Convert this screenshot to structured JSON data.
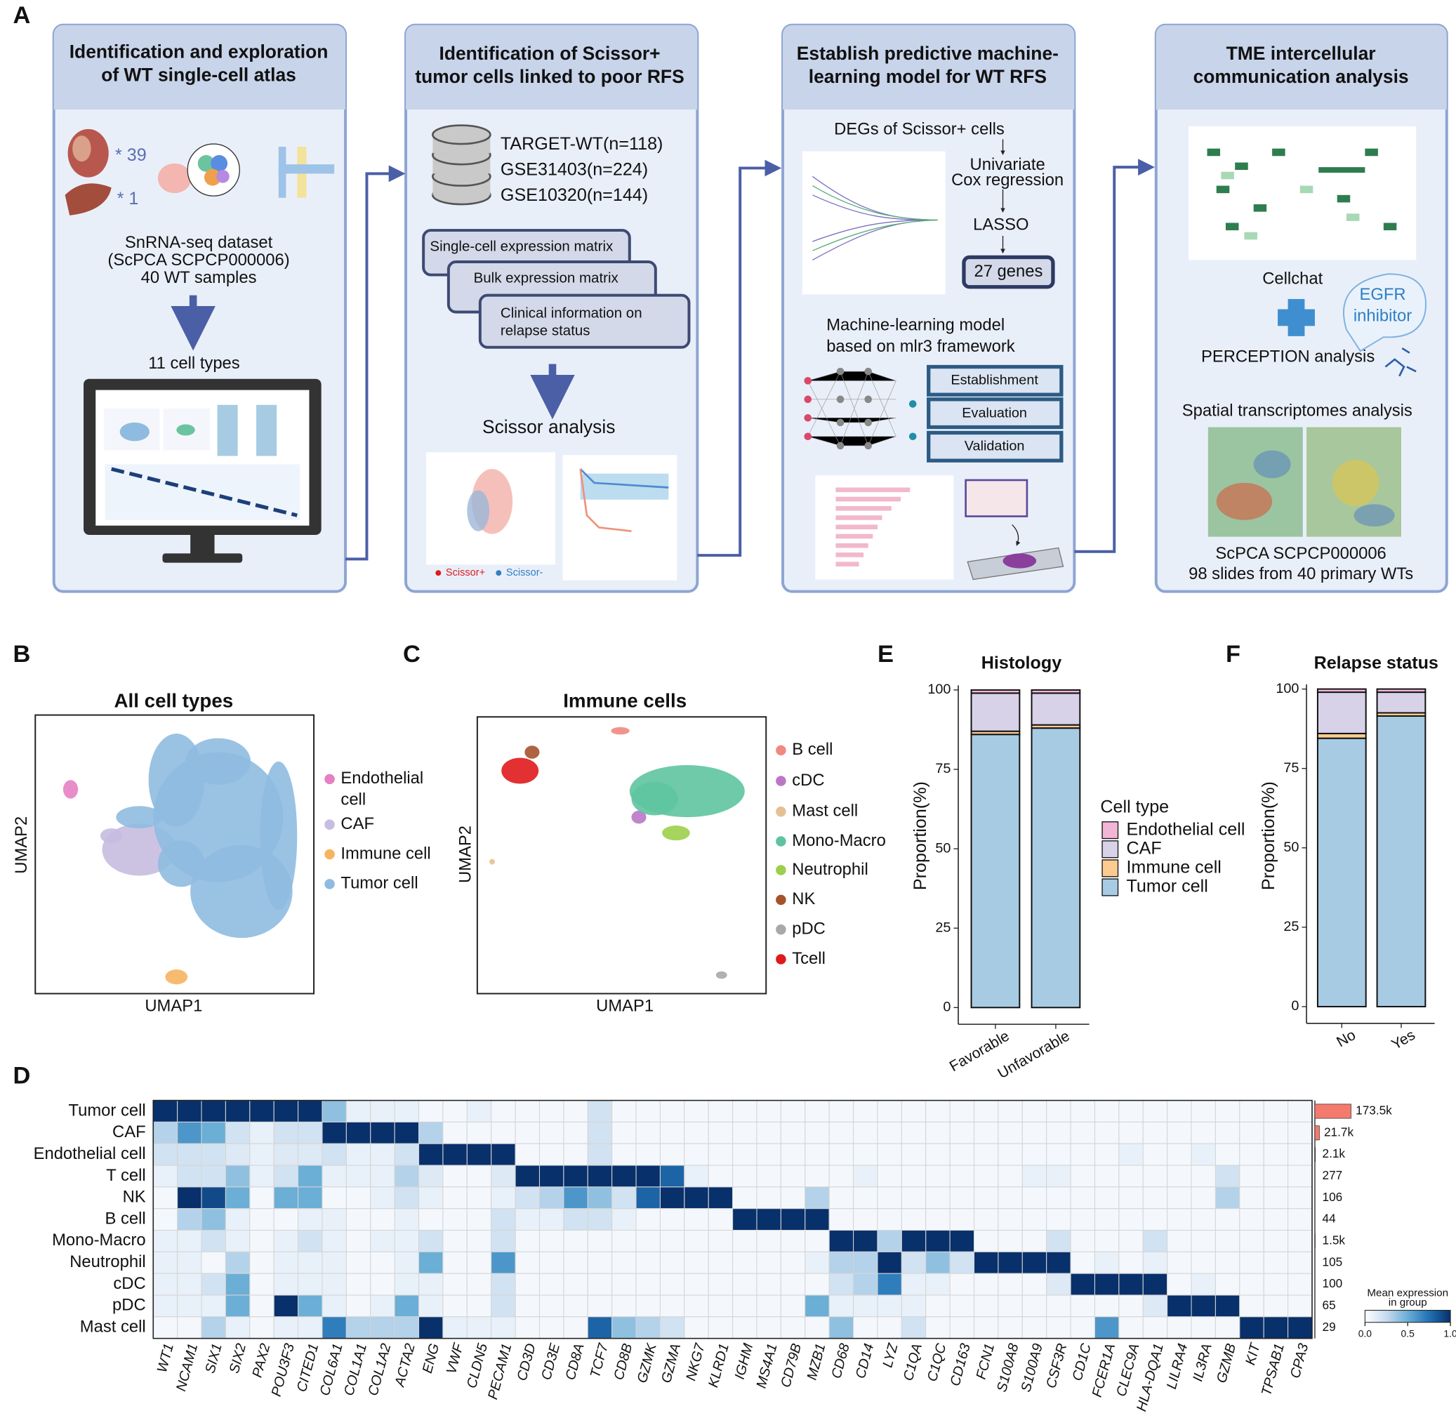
{
  "panel_labels": [
    "A",
    "B",
    "C",
    "D",
    "E",
    "F"
  ],
  "panel_a": {
    "box1": {
      "title": [
        "Identification and exploration",
        "of WT single-cell atlas"
      ],
      "counts": [
        "* 39",
        "* 1"
      ],
      "dataset": [
        "SnRNA-seq dataset",
        "(ScPCA SCPCP000006)",
        "40 WT samples"
      ],
      "result": "11 cell types"
    },
    "box2": {
      "title": [
        "Identification of Scissor+",
        "tumor cells linked to poor RFS"
      ],
      "cohorts": [
        "TARGET-WT(n=118)",
        "GSE31403(n=224)",
        "GSE10320(n=144)"
      ],
      "inputs": [
        "Single-cell expression matrix",
        "Bulk expression matrix"
      ],
      "clinical": [
        "Clinical information on",
        "relapse status"
      ],
      "method": "Scissor analysis",
      "legend": [
        "Scissor+",
        "Scissor-"
      ]
    },
    "box3": {
      "title": [
        "Establish predictive machine-",
        "learning model for WT RFS"
      ],
      "degs": "DEGs of Scissor+ cells",
      "cox": [
        "Univariate",
        "Cox regression"
      ],
      "lasso": "LASSO",
      "genes": "27 genes",
      "ml": [
        "Machine-learning model",
        "based on mlr3 framework"
      ],
      "stages": [
        "Establishment",
        "Evaluation",
        "Validation"
      ]
    },
    "box4": {
      "title": [
        "TME intercellular",
        "communication analysis"
      ],
      "cellchat": "Cellchat",
      "egfr": [
        "EGFR",
        "inhibitor"
      ],
      "perception": "PERCEPTION analysis",
      "spatial": "Spatial transcriptomes analysis",
      "source": [
        "ScPCA SCPCP000006",
        "98 slides from 40 primary WTs"
      ]
    }
  },
  "umap_all": {
    "title": "All cell types",
    "xlabel": "UMAP1",
    "ylabel": "UMAP2",
    "legend": [
      {
        "label": [
          "Endothelial",
          "cell"
        ],
        "color": "#e77fc4"
      },
      {
        "label": [
          "CAF"
        ],
        "color": "#c7bde0"
      },
      {
        "label": [
          "Immune cell"
        ],
        "color": "#f6b460"
      },
      {
        "label": [
          "Tumor cell"
        ],
        "color": "#8fbbe0"
      }
    ]
  },
  "umap_immune": {
    "title": "Immune cells",
    "xlabel": "UMAP1",
    "ylabel": "UMAP2",
    "legend": [
      {
        "label": [
          "B cell"
        ],
        "color": "#f08a80"
      },
      {
        "label": [
          "cDC"
        ],
        "color": "#bb77c6"
      },
      {
        "label": [
          "Mast cell"
        ],
        "color": "#e6c095"
      },
      {
        "label": [
          "Mono-Macro"
        ],
        "color": "#5ec4a0"
      },
      {
        "label": [
          "Neutrophil"
        ],
        "color": "#9ccf4a"
      },
      {
        "label": [
          "NK"
        ],
        "color": "#a5532b"
      },
      {
        "label": [
          "pDC"
        ],
        "color": "#a9a9a9"
      },
      {
        "label": [
          "Tcell"
        ],
        "color": "#e0191c"
      }
    ]
  },
  "chart_data": [
    {
      "type": "heatmap",
      "rows": [
        "Tumor cell",
        "CAF",
        "Endothelial cell",
        "T cell",
        "NK",
        "B cell",
        "Mono-Macro",
        "Neutrophil",
        "cDC",
        "pDC",
        "Mast cell"
      ],
      "columns": [
        "WT1",
        "NCAM1",
        "SIX1",
        "SIX2",
        "PAX2",
        "POU3F3",
        "CITED1",
        "COL6A1",
        "COL1A1",
        "COL1A2",
        "ACTA2",
        "ENG",
        "VWF",
        "CLDN5",
        "PECAM1",
        "CD3D",
        "CD3E",
        "CD8A",
        "TCF7",
        "CD8B",
        "GZMK",
        "GZMA",
        "NKG7",
        "KLRD1",
        "IGHM",
        "MS4A1",
        "CD79B",
        "MZB1",
        "CD68",
        "CD14",
        "LYZ",
        "C1QA",
        "C1QC",
        "CD163",
        "FCN1",
        "S100A8",
        "S100A9",
        "CSF3R",
        "CD1C",
        "FCER1A",
        "CLEC9A",
        "HLA-DQA1",
        "LILRA4",
        "IL3RA",
        "GZMB",
        "KIT",
        "TPSAB1",
        "CPA3"
      ],
      "values": [
        [
          1,
          1,
          1,
          1,
          1,
          1,
          1,
          0.4,
          0.1,
          0.1,
          0.1,
          0.05,
          0.05,
          0.1,
          0.05,
          0.05,
          0.05,
          0.05,
          0.2,
          0.05,
          0.05,
          0.05,
          0.05,
          0.05,
          0.05,
          0.05,
          0.05,
          0.05,
          0.05,
          0.05,
          0.05,
          0.05,
          0.05,
          0.05,
          0.05,
          0.05,
          0.05,
          0.05,
          0.05,
          0.05,
          0.05,
          0.05,
          0.05,
          0.05,
          0.05,
          0.05,
          0.05,
          0.05
        ],
        [
          0.3,
          0.6,
          0.5,
          0.2,
          0.1,
          0.2,
          0.2,
          1,
          1,
          1,
          1,
          0.3,
          0.05,
          0.05,
          0.05,
          0.05,
          0.05,
          0.05,
          0.2,
          0.05,
          0.05,
          0.05,
          0.05,
          0.05,
          0.05,
          0.05,
          0.05,
          0.05,
          0.05,
          0.05,
          0.05,
          0.05,
          0.05,
          0.05,
          0.05,
          0.05,
          0.05,
          0.05,
          0.05,
          0.05,
          0.05,
          0.05,
          0.05,
          0.05,
          0.05,
          0.05,
          0.05,
          0.05
        ],
        [
          0.2,
          0.2,
          0.2,
          0.15,
          0.1,
          0.15,
          0.15,
          0.2,
          0.1,
          0.1,
          0.2,
          1,
          1,
          1,
          1,
          0.05,
          0.05,
          0.05,
          0.2,
          0.05,
          0.05,
          0.05,
          0.05,
          0.05,
          0.05,
          0.05,
          0.05,
          0.05,
          0.05,
          0.05,
          0.05,
          0.05,
          0.05,
          0.05,
          0.05,
          0.05,
          0.05,
          0.05,
          0.05,
          0.05,
          0.1,
          0.05,
          0.05,
          0.1,
          0.05,
          0.05,
          0.05,
          0.05
        ],
        [
          0.1,
          0.2,
          0.2,
          0.4,
          0.1,
          0.2,
          0.5,
          0.1,
          0.1,
          0.1,
          0.3,
          0.15,
          0.05,
          0.05,
          0.15,
          1,
          1,
          1,
          1,
          1,
          1,
          0.8,
          0.1,
          0.05,
          0.05,
          0.05,
          0.05,
          0.05,
          0.05,
          0.1,
          0.05,
          0.05,
          0.05,
          0.05,
          0.05,
          0.05,
          0.1,
          0.1,
          0.05,
          0.05,
          0.05,
          0.05,
          0.05,
          0.05,
          0.2,
          0.05,
          0.05,
          0.05
        ],
        [
          0.05,
          1,
          0.9,
          0.5,
          0.05,
          0.5,
          0.5,
          0.05,
          0.05,
          0.1,
          0.2,
          0.1,
          0.05,
          0.05,
          0.1,
          0.2,
          0.3,
          0.6,
          0.4,
          0.2,
          0.8,
          1,
          1,
          1,
          0.05,
          0.05,
          0.05,
          0.3,
          0.05,
          0.05,
          0.05,
          0.05,
          0.05,
          0.05,
          0.05,
          0.05,
          0.05,
          0.05,
          0.05,
          0.05,
          0.05,
          0.05,
          0.05,
          0.05,
          0.3,
          0.05,
          0.05,
          0.05
        ],
        [
          0.05,
          0.3,
          0.4,
          0.1,
          0.05,
          0.05,
          0.1,
          0.1,
          0.05,
          0.05,
          0.1,
          0.05,
          0.05,
          0.05,
          0.2,
          0.1,
          0.1,
          0.2,
          0.2,
          0.1,
          0.05,
          0.05,
          0.05,
          0.05,
          1,
          1,
          1,
          1,
          0.05,
          0.05,
          0.05,
          0.05,
          0.05,
          0.05,
          0.05,
          0.05,
          0.05,
          0.05,
          0.05,
          0.05,
          0.05,
          0.05,
          0.05,
          0.05,
          0.05,
          0.05,
          0.05,
          0.05
        ],
        [
          0.1,
          0.1,
          0.2,
          0.1,
          0.05,
          0.1,
          0.2,
          0.1,
          0.05,
          0.1,
          0.1,
          0.2,
          0.05,
          0.05,
          0.2,
          0.05,
          0.05,
          0.05,
          0.05,
          0.05,
          0.05,
          0.05,
          0.05,
          0.05,
          0.05,
          0.05,
          0.05,
          0.05,
          1,
          1,
          0.3,
          1,
          1,
          1,
          0.05,
          0.05,
          0.05,
          0.2,
          0.05,
          0.05,
          0.05,
          0.2,
          0.05,
          0.05,
          0.05,
          0.05,
          0.05,
          0.05
        ],
        [
          0.1,
          0.1,
          0.05,
          0.3,
          0.05,
          0.1,
          0.1,
          0.1,
          0.05,
          0.05,
          0.1,
          0.5,
          0.05,
          0.05,
          0.6,
          0.05,
          0.05,
          0.05,
          0.05,
          0.05,
          0.05,
          0.05,
          0.05,
          0.05,
          0.05,
          0.05,
          0.05,
          0.1,
          0.3,
          0.3,
          1,
          0.2,
          0.4,
          0.2,
          1,
          1,
          1,
          1,
          0.05,
          0.1,
          0.05,
          0.1,
          0.05,
          0.05,
          0.05,
          0.05,
          0.05,
          0.05
        ],
        [
          0.1,
          0.1,
          0.2,
          0.5,
          0.05,
          0.1,
          0.1,
          0.1,
          0.05,
          0.05,
          0.1,
          0.1,
          0.05,
          0.05,
          0.2,
          0.05,
          0.05,
          0.05,
          0.05,
          0.05,
          0.05,
          0.05,
          0.05,
          0.05,
          0.05,
          0.05,
          0.05,
          0.05,
          0.2,
          0.3,
          0.7,
          0.1,
          0.1,
          0.05,
          0.05,
          0.05,
          0.05,
          0.15,
          1,
          1,
          1,
          1,
          0.05,
          0.1,
          0.05,
          0.05,
          0.05,
          0.05
        ],
        [
          0.1,
          0.1,
          0.1,
          0.5,
          0.05,
          1,
          0.5,
          0.1,
          0.05,
          0.1,
          0.5,
          0.1,
          0.05,
          0.05,
          0.2,
          0.05,
          0.05,
          0.05,
          0.05,
          0.05,
          0.05,
          0.05,
          0.05,
          0.05,
          0.05,
          0.05,
          0.05,
          0.5,
          0.1,
          0.1,
          0.1,
          0.1,
          0.05,
          0.05,
          0.05,
          0.05,
          0.05,
          0.05,
          0.05,
          0.05,
          0.05,
          0.15,
          1,
          1,
          1,
          0.05,
          0.05,
          0.05
        ],
        [
          0.05,
          0.05,
          0.3,
          0.1,
          0.05,
          0.1,
          0.1,
          0.7,
          0.3,
          0.3,
          0.3,
          1,
          0.1,
          0.1,
          0.1,
          0.05,
          0.05,
          0.05,
          0.8,
          0.4,
          0.3,
          0.2,
          0.05,
          0.05,
          0.05,
          0.05,
          0.05,
          0.05,
          0.4,
          0.05,
          0.05,
          0.2,
          0.05,
          0.05,
          0.05,
          0.05,
          0.05,
          0.05,
          0.05,
          0.6,
          0.05,
          0.05,
          0.05,
          0.05,
          0.05,
          1,
          1,
          1
        ]
      ],
      "cell_counts": {
        "values": [
          173500,
          21700,
          2100,
          277,
          106,
          44,
          1500,
          105,
          100,
          65,
          29
        ],
        "value_labels": [
          "173.5k",
          "21.7k",
          "2.1k",
          "277",
          "106",
          "44",
          "1.5k",
          "105",
          "100",
          "65",
          "29"
        ],
        "color": "#f47a6d"
      },
      "colorbar_title": [
        "Mean expression",
        "in group"
      ],
      "clim": [
        0,
        1
      ],
      "colorbar_ticks": [
        {
          "value": 0,
          "label": "0.0"
        },
        {
          "value": 0.5,
          "label": "0.5"
        },
        {
          "value": 1,
          "label": "1.0"
        }
      ]
    },
    {
      "type": "stacked_bar",
      "title": "Histology",
      "ylabel": "Proportion(%)",
      "categories": [
        "Favorable",
        "Unfavorable"
      ],
      "series": [
        {
          "name": "Endothelial cell",
          "color": "#f2b5d6",
          "values": [
            1,
            1
          ]
        },
        {
          "name": "CAF",
          "color": "#d8d2e8",
          "values": [
            12,
            10
          ]
        },
        {
          "name": "Immune cell",
          "color": "#fdcb90",
          "values": [
            1,
            1
          ]
        },
        {
          "name": "Tumor cell",
          "color": "#a7cbe3",
          "values": [
            86,
            88
          ]
        }
      ],
      "legend_title": "Cell type",
      "ylim": [
        0,
        100
      ],
      "yticks": [
        0,
        25,
        50,
        75,
        100
      ]
    },
    {
      "type": "stacked_bar",
      "title": "Relapse status",
      "ylabel": "Proportion(%)",
      "categories": [
        "No",
        "Yes"
      ],
      "series": [
        {
          "color": "#f2b5d6",
          "values": [
            1,
            1
          ]
        },
        {
          "color": "#d8d2e8",
          "values": [
            13,
            6.5
          ]
        },
        {
          "color": "#fdcb90",
          "values": [
            1.5,
            1
          ]
        },
        {
          "color": "#a7cbe3",
          "values": [
            84.5,
            91.5
          ]
        }
      ],
      "ylim": [
        0,
        100
      ],
      "yticks": [
        0,
        25,
        50,
        75,
        100
      ]
    }
  ]
}
